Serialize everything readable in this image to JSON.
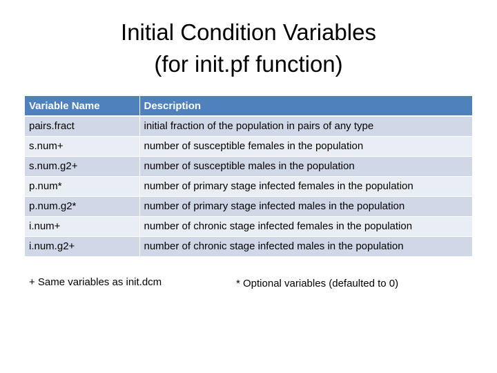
{
  "slide": {
    "title_line1": "Initial Condition Variables",
    "title_line2": "(for init.pf function)"
  },
  "table": {
    "headers": [
      "Variable Name",
      "Description"
    ],
    "rows": [
      [
        "pairs.fract",
        "initial fraction of the population in pairs of any type"
      ],
      [
        "s.num+",
        "number of susceptible females in the population"
      ],
      [
        "s.num.g2+",
        "number of susceptible males in the population"
      ],
      [
        "p.num*",
        "number of primary stage infected females in the population"
      ],
      [
        "p.num.g2*",
        "number of primary stage infected males in the population"
      ],
      [
        "i.num+",
        "number of chronic stage infected females in the population"
      ],
      [
        "i.num.g2+",
        "number of chronic stage infected males in the population"
      ]
    ]
  },
  "notes": {
    "plus": "+ Same variables as init.dcm",
    "star": "* Optional variables (defaulted to 0)"
  },
  "colors": {
    "header_bg": "#4f81bd",
    "row_odd_bg": "#d0d8e8",
    "row_even_bg": "#e9edf4"
  }
}
